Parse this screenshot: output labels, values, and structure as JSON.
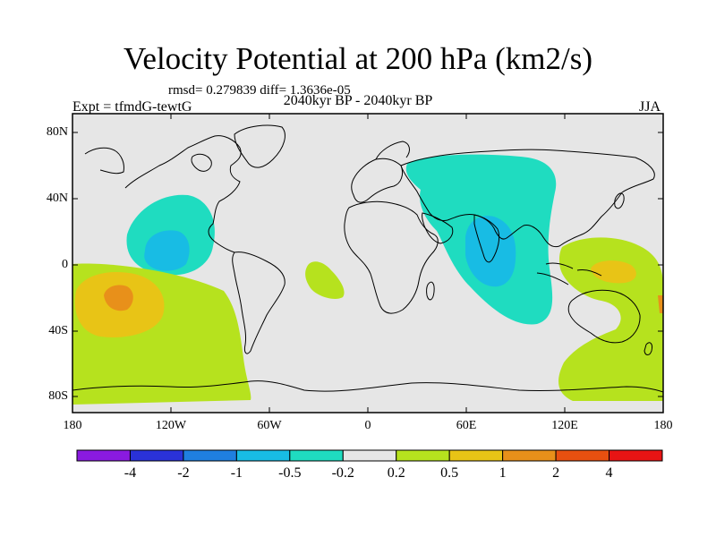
{
  "title": "Velocity Potential at 200 hPa (km2/s)",
  "stats": "rmsd= 0.279839 diff= 1.3636e-05",
  "experiment": "Expt = tfmdG-tewtG",
  "period": "2040kyr BP - 2040kyr BP",
  "season": "JJA",
  "lat_labels": [
    "80N",
    "40N",
    "0",
    "40S",
    "80S"
  ],
  "lon_labels": [
    "180",
    "120W",
    "60W",
    "0",
    "60E",
    "120E",
    "180"
  ],
  "colorbar": {
    "labels": [
      "-4",
      "-2",
      "-1",
      "-0.5",
      "-0.2",
      "0.2",
      "0.5",
      "1",
      "2",
      "4"
    ],
    "colors": [
      "#8a1ae0",
      "#2a32d8",
      "#1f7fe0",
      "#18bce4",
      "#1fdcc0",
      "#e6e6e6",
      "#b6e21e",
      "#e8c416",
      "#e8901a",
      "#e85010",
      "#e81414"
    ]
  },
  "colors": {
    "land_outline": "#000000",
    "background": "#e6e6e6",
    "neg_light": "#1fdcc0",
    "neg_mid": "#18bce4",
    "pos_light": "#b6e21e",
    "pos_mid": "#e8c416",
    "pos_high": "#e8901a"
  }
}
